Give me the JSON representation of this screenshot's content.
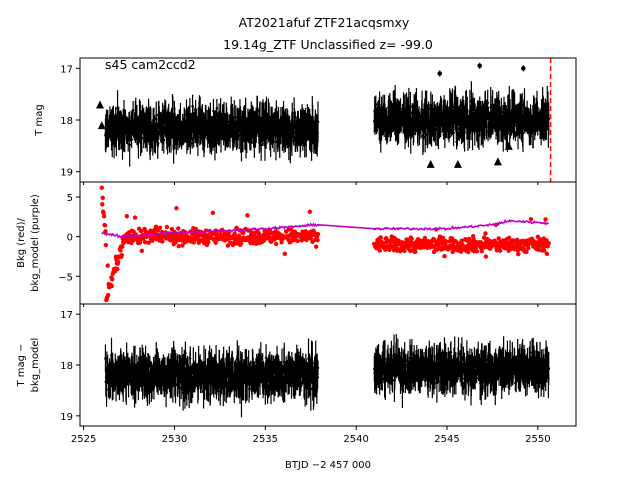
{
  "title": {
    "line1": "AT2021afuf  ZTF21acqsmxy",
    "line2": "19.14g_ZTF Unclassified z= -99.0"
  },
  "annotation": "s45 cam2ccd2",
  "colors": {
    "points": "#000000",
    "bkg": "#ff0000",
    "bkg_model": "#bf00bf",
    "marker_line": "#ff0000"
  },
  "chart_data": [
    {
      "type": "scatter",
      "panel": "top",
      "ylabel": "T mag",
      "ylim": [
        19.2,
        16.8
      ],
      "yticks": [
        "17",
        "18",
        "19"
      ],
      "xlim": [
        2524.8,
        2552.1
      ],
      "marker_x": 2550.7,
      "segments": [
        {
          "x_start": 2526.2,
          "x_end": 2537.9,
          "y_center": 18.15,
          "y_spread": 0.45
        },
        {
          "x_start": 2541.0,
          "x_end": 2550.6,
          "y_center": 18.0,
          "y_spread": 0.45
        }
      ],
      "outliers": [
        {
          "x": 2544.6,
          "y": 17.1
        },
        {
          "x": 2546.8,
          "y": 16.95
        },
        {
          "x": 2549.2,
          "y": 17.0
        }
      ],
      "triangles": [
        {
          "x": 2525.9,
          "y": 17.7
        },
        {
          "x": 2526.0,
          "y": 18.1
        },
        {
          "x": 2544.1,
          "y": 18.85
        },
        {
          "x": 2545.6,
          "y": 18.85
        },
        {
          "x": 2547.8,
          "y": 18.8
        },
        {
          "x": 2548.4,
          "y": 18.5
        }
      ]
    },
    {
      "type": "scatter",
      "panel": "middle",
      "ylabel": "Bkg (red)/\nbkg_model (purple)",
      "ylim": [
        -8.5,
        6.9
      ],
      "yticks": [
        "5",
        "0",
        "−5"
      ],
      "xlim": [
        2524.8,
        2552.1
      ],
      "series": [
        {
          "name": "Bkg (red)",
          "segments": [
            {
              "x_start": 2526.0,
              "x_end": 2537.9,
              "start_value": 6.0,
              "dip_value": -7.5,
              "level": 0.0
            },
            {
              "x_start": 2541.0,
              "x_end": 2550.6,
              "level": -1.0
            }
          ]
        },
        {
          "name": "bkg_model (purple)",
          "values": [
            [
              2526.0,
              0.5
            ],
            [
              2527.0,
              0.0
            ],
            [
              2530.0,
              0.5
            ],
            [
              2535.0,
              1.0
            ],
            [
              2537.9,
              1.5
            ],
            [
              2541.0,
              1.0
            ],
            [
              2545.0,
              1.0
            ],
            [
              2547.5,
              1.5
            ],
            [
              2548.5,
              2.0
            ],
            [
              2550.6,
              1.7
            ]
          ]
        }
      ]
    },
    {
      "type": "scatter",
      "panel": "bottom",
      "ylabel": "T mag −\nbkg_model",
      "xlabel": "BTJD −2 457 000",
      "ylim": [
        19.2,
        16.8
      ],
      "yticks": [
        "17",
        "18",
        "19"
      ],
      "xlim": [
        2524.8,
        2552.1
      ],
      "xticks": [
        "2525",
        "2530",
        "2535",
        "2540",
        "2545",
        "2550"
      ],
      "xtick_values": [
        2525,
        2530,
        2535,
        2540,
        2545,
        2550
      ],
      "segments": [
        {
          "x_start": 2526.2,
          "x_end": 2537.9,
          "y_center": 18.2,
          "y_spread": 0.45
        },
        {
          "x_start": 2541.0,
          "x_end": 2550.6,
          "y_center": 18.1,
          "y_spread": 0.45
        }
      ]
    }
  ]
}
